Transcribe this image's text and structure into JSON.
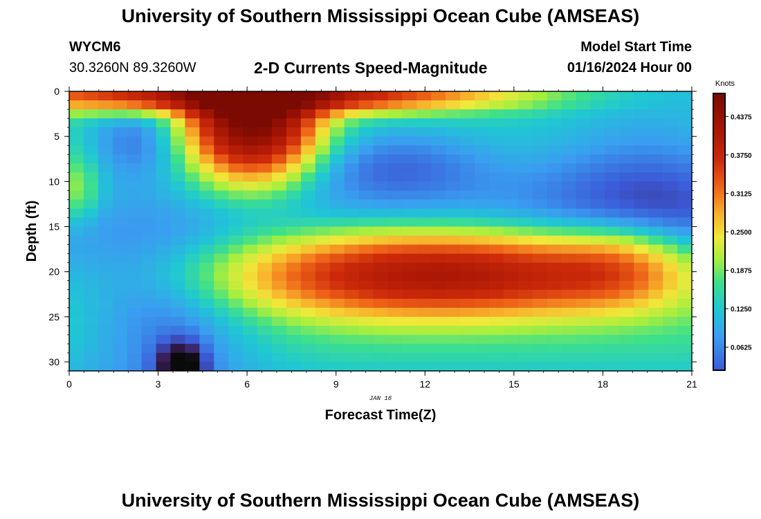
{
  "header": {
    "title_top": "University of Southern Mississippi Ocean Cube (AMSEAS)",
    "title_bottom": "University of Southern Mississippi Ocean Cube (AMSEAS)",
    "station": "WYCM6",
    "coords": "30.3260N  89.3260W",
    "subtitle": "2-D Currents Speed-Magnitude",
    "model_start_label": "Model Start Time",
    "model_start_value": "01/16/2024 Hour 00"
  },
  "chart_data": {
    "type": "heatmap",
    "title": "2-D Currents Speed-Magnitude",
    "xlabel": "Forecast Time(Z)",
    "ylabel": "Depth (ft)",
    "date_label": "JAN 16",
    "x_ticks": [
      "0",
      "3",
      "6",
      "9",
      "12",
      "15",
      "18",
      "21"
    ],
    "y_ticks": [
      "0",
      "5",
      "10",
      "15",
      "20",
      "25",
      "30"
    ],
    "xlim": [
      0,
      21
    ],
    "ylim": [
      0,
      31
    ],
    "colorbar": {
      "unit": "Knots",
      "min": 0.025,
      "max": 0.475,
      "ticks": [
        "0.0625",
        "0.1250",
        "0.1875",
        "0.2500",
        "0.3125",
        "0.3750",
        "0.4375"
      ]
    },
    "features": [
      {
        "region": "near-surface jet",
        "time_range_h": [
          4.5,
          8
        ],
        "depth_range_ft": [
          0,
          11
        ],
        "peak_speed_kt": 0.47
      },
      {
        "region": "surface band",
        "time_range_h": [
          0,
          15
        ],
        "depth_range_ft": [
          0,
          3
        ],
        "peak_speed_kt": 0.45
      },
      {
        "region": "mid-depth jet",
        "time_range_h": [
          8,
          19
        ],
        "depth_range_ft": [
          16,
          25
        ],
        "peak_speed_kt": 0.36
      },
      {
        "region": "weak upper cell",
        "time_range_h": [
          1,
          3
        ],
        "depth_range_ft": [
          3,
          8
        ],
        "peak_speed_kt": 0.07
      },
      {
        "region": "weak mid cell",
        "time_range_h": [
          9,
          13
        ],
        "depth_range_ft": [
          5,
          11
        ],
        "peak_speed_kt": 0.065
      },
      {
        "region": "near-bottom minimum",
        "time_range_h": [
          3,
          4
        ],
        "depth_range_ft": [
          27,
          31
        ],
        "peak_speed_kt": 0.0
      }
    ]
  }
}
